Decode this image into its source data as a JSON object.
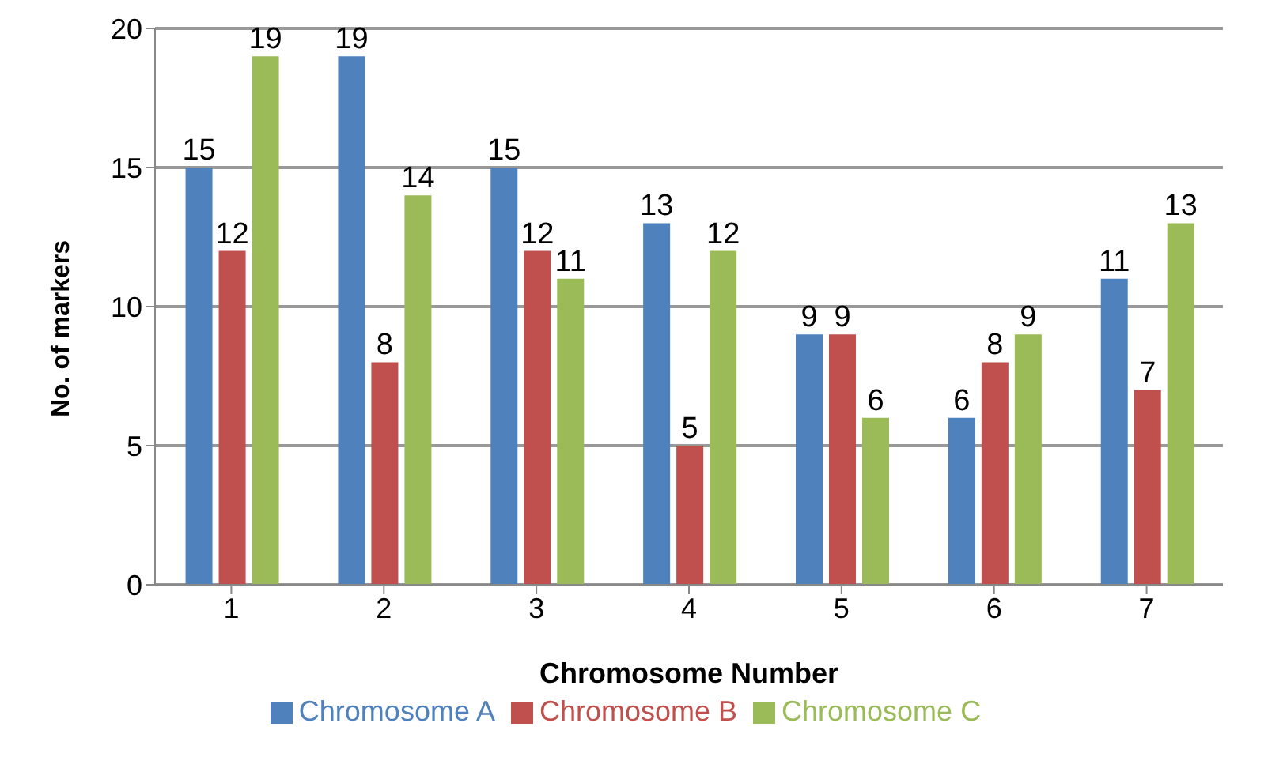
{
  "chart_data": {
    "type": "bar",
    "xlabel": "Chromosome Number",
    "ylabel": "No. of markers",
    "categories": [
      "1",
      "2",
      "3",
      "4",
      "5",
      "6",
      "7"
    ],
    "series": [
      {
        "name": "Chromosome A",
        "color": "#4f81bd",
        "values": [
          15,
          19,
          15,
          13,
          9,
          6,
          11
        ]
      },
      {
        "name": "Chromosome B",
        "color": "#c0504d",
        "values": [
          12,
          8,
          12,
          5,
          9,
          8,
          7
        ]
      },
      {
        "name": "Chromosome C",
        "color": "#9bbb59",
        "values": [
          19,
          14,
          11,
          12,
          6,
          9,
          13
        ]
      }
    ],
    "ylim": [
      0,
      20
    ],
    "yticks": [
      0,
      5,
      10,
      15,
      20
    ],
    "grid": "y",
    "legend": "bottom",
    "data_labels": true
  }
}
